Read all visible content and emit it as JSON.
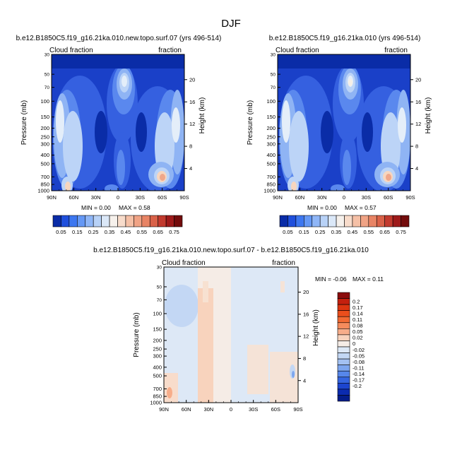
{
  "title": "DJF",
  "colors": {
    "frame": "#000000",
    "background": "#ffffff"
  },
  "chart_data": [
    {
      "type": "heatmap",
      "id": "panel-a",
      "title": "b.e12.B1850C5.f19_g16.21ka.010.new.topo.surf.07 (yrs 496-514)",
      "left_label": "Cloud fraction",
      "right_label": "fraction",
      "xlabel": "",
      "ylabel": "Pressure (mb)",
      "ylabel_right": "Height (km)",
      "x_ticks": [
        "90N",
        "60N",
        "30N",
        "0",
        "30S",
        "60S",
        "90S"
      ],
      "xlim": [
        90,
        -90
      ],
      "y_ticks": [
        30,
        50,
        70,
        100,
        150,
        200,
        250,
        300,
        400,
        500,
        700,
        850,
        1000
      ],
      "ylim": [
        30,
        1000
      ],
      "y_scale": "log",
      "height_ticks": [
        4,
        8,
        12,
        16,
        20
      ],
      "min_text": "MIN =   0.00",
      "max_text": "MAX =   0.58",
      "min": 0.0,
      "max": 0.58
    },
    {
      "type": "heatmap",
      "id": "panel-b",
      "title": "b.e12.B1850C5.f19_g16.21ka.010 (yrs 496-514)",
      "left_label": "Cloud fraction",
      "right_label": "fraction",
      "xlabel": "",
      "ylabel": "Pressure (mb)",
      "ylabel_right": "Height (km)",
      "x_ticks": [
        "90N",
        "60N",
        "30N",
        "0",
        "30S",
        "60S",
        "90S"
      ],
      "xlim": [
        90,
        -90
      ],
      "y_ticks": [
        30,
        50,
        70,
        100,
        150,
        200,
        250,
        300,
        400,
        500,
        700,
        850,
        1000
      ],
      "ylim": [
        30,
        1000
      ],
      "y_scale": "log",
      "height_ticks": [
        4,
        8,
        12,
        16,
        20
      ],
      "min_text": "MIN =   0.00",
      "max_text": "MAX =   0.57",
      "min": 0.0,
      "max": 0.57
    },
    {
      "type": "heatmap",
      "id": "panel-diff",
      "title": "b.e12.B1850C5.f19_g16.21ka.010.new.topo.surf.07 - b.e12.B1850C5.f19_g16.21ka.010",
      "left_label": "Cloud fraction",
      "right_label": "fraction",
      "xlabel": "",
      "ylabel": "Pressure (mb)",
      "ylabel_right": "Height (km)",
      "x_ticks": [
        "90N",
        "60N",
        "30N",
        "0",
        "30S",
        "60S",
        "90S"
      ],
      "xlim": [
        90,
        -90
      ],
      "y_ticks": [
        30,
        50,
        70,
        100,
        150,
        200,
        250,
        300,
        400,
        500,
        700,
        850,
        1000
      ],
      "ylim": [
        30,
        1000
      ],
      "y_scale": "log",
      "height_ticks": [
        4,
        8,
        12,
        16,
        20
      ],
      "min_text": "MIN = -0.06",
      "max_text": "MAX =   0.11",
      "min": -0.06,
      "max": 0.11
    }
  ],
  "colorbars": {
    "absolute": {
      "labels": [
        "0.05",
        "0.15",
        "0.25",
        "0.35",
        "0.45",
        "0.55",
        "0.65",
        "0.75"
      ],
      "colors": [
        "#0a2ca7",
        "#1f4fdc",
        "#3d77f0",
        "#6598f5",
        "#8fb6f7",
        "#b8d2f7",
        "#dbe8f8",
        "#f6f1ec",
        "#f8dccb",
        "#f5c0a6",
        "#f0a385",
        "#e88465",
        "#d96148",
        "#c23a2e",
        "#9e1a1a",
        "#730c0c"
      ]
    },
    "difference": {
      "labels": [
        "0.2",
        "0.17",
        "0.14",
        "0.11",
        "0.08",
        "0.05",
        "0.02",
        "0",
        "-0.02",
        "-0.05",
        "-0.08",
        "-0.11",
        "-0.14",
        "-0.17",
        "-0.2"
      ],
      "colors": [
        "#8b0c0c",
        "#c4200e",
        "#dc3510",
        "#ea4e1c",
        "#f26a33",
        "#f58b5c",
        "#f7ad8a",
        "#f8d3bd",
        "#f5ece6",
        "#dde8f6",
        "#c3d7f4",
        "#a3c1f2",
        "#7da6ef",
        "#5787ea",
        "#3565e0",
        "#1c45cf",
        "#0b2bb0",
        "#041d8a"
      ]
    }
  }
}
